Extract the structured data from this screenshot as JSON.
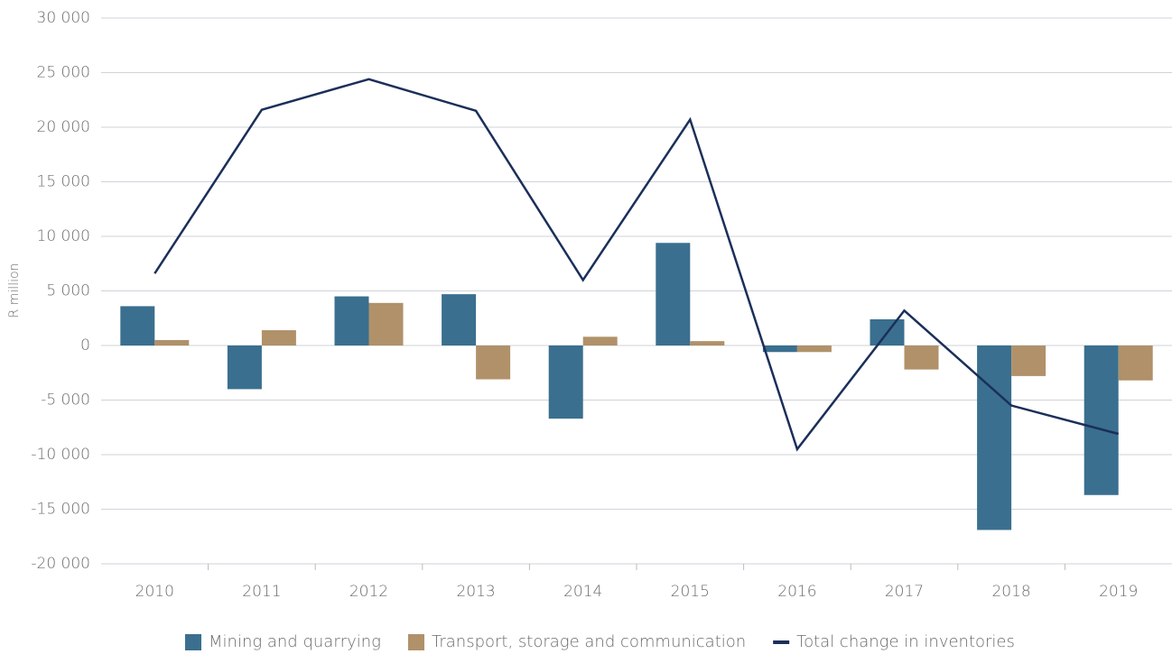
{
  "chart_data": {
    "type": "bar",
    "y_label": "R million",
    "categories": [
      "2010",
      "2011",
      "2012",
      "2013",
      "2014",
      "2015",
      "2016",
      "2017",
      "2018",
      "2019"
    ],
    "series": [
      {
        "name": "Mining and quarrying",
        "color": "#3a6f8f",
        "values": [
          3600,
          -4000,
          4500,
          4700,
          -6700,
          9400,
          -600,
          2400,
          -16900,
          -13700
        ]
      },
      {
        "name": "Transport, storage and communication",
        "color": "#b0916a",
        "values": [
          500,
          1400,
          3900,
          -3100,
          800,
          400,
          -600,
          -2200,
          -2800,
          -3200
        ]
      },
      {
        "name": "Total change in inventories",
        "color": "#1b2f5a",
        "type": "line",
        "values": [
          6600,
          21600,
          24400,
          21500,
          6000,
          20700,
          -9500,
          3200,
          -5500,
          -8100
        ]
      }
    ],
    "ylim": [
      -20000,
      30000
    ],
    "yticks": [
      {
        "value": -20000,
        "label": "-20 000"
      },
      {
        "value": -15000,
        "label": "-15 000"
      },
      {
        "value": -10000,
        "label": "-10 000"
      },
      {
        "value": -5000,
        "label": "-5 000"
      },
      0,
      {
        "value": 5000,
        "label": "5 000"
      },
      {
        "value": 10000,
        "label": "10 000"
      },
      {
        "value": 15000,
        "label": "15 000"
      },
      {
        "value": 20000,
        "label": "20 000"
      },
      {
        "value": 25000,
        "label": "25 000"
      },
      {
        "value": 30000,
        "label": "30 000"
      }
    ],
    "grid": true
  }
}
